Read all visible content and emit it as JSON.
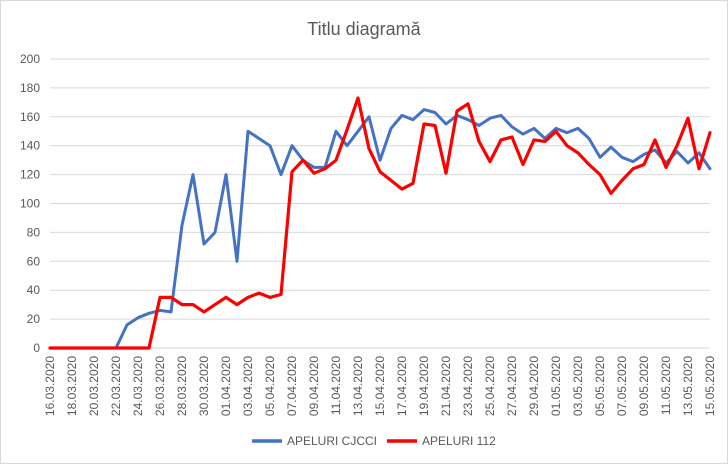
{
  "chart_data": {
    "type": "line",
    "title": "Titlu diagramă",
    "xlabel": "",
    "ylabel": "",
    "ylim": [
      0,
      200
    ],
    "yticks": [
      0,
      20,
      40,
      60,
      80,
      100,
      120,
      140,
      160,
      180,
      200
    ],
    "grid": true,
    "legend_position": "bottom",
    "x": [
      "16.03.2020",
      "17.03.2020",
      "18.03.2020",
      "19.03.2020",
      "20.03.2020",
      "21.03.2020",
      "22.03.2020",
      "23.03.2020",
      "24.03.2020",
      "25.03.2020",
      "26.03.2020",
      "27.03.2020",
      "28.03.2020",
      "29.03.2020",
      "30.03.2020",
      "31.03.2020",
      "01.04.2020",
      "02.04.2020",
      "03.04.2020",
      "04.04.2020",
      "05.04.2020",
      "06.04.2020",
      "07.04.2020",
      "08.04.2020",
      "09.04.2020",
      "10.04.2020",
      "11.04.2020",
      "12.04.2020",
      "13.04.2020",
      "14.04.2020",
      "15.04.2020",
      "16.04.2020",
      "17.04.2020",
      "18.04.2020",
      "19.04.2020",
      "20.04.2020",
      "21.04.2020",
      "22.04.2020",
      "23.04.2020",
      "24.04.2020",
      "25.04.2020",
      "26.04.2020",
      "27.04.2020",
      "28.04.2020",
      "29.04.2020",
      "30.04.2020",
      "01.05.2020",
      "02.05.2020",
      "03.05.2020",
      "04.05.2020",
      "05.05.2020",
      "06.05.2020",
      "07.05.2020",
      "08.05.2020",
      "09.05.2020",
      "10.05.2020",
      "11.05.2020",
      "12.05.2020",
      "13.05.2020",
      "14.05.2020",
      "15.05.2020"
    ],
    "xtick_labels": [
      "16.03.2020",
      "18.03.2020",
      "20.03.2020",
      "22.03.2020",
      "24.03.2020",
      "26.03.2020",
      "28.03.2020",
      "30.03.2020",
      "01.04.2020",
      "03.04.2020",
      "05.04.2020",
      "07.04.2020",
      "09.04.2020",
      "11.04.2020",
      "13.04.2020",
      "15.04.2020",
      "17.04.2020",
      "19.04.2020",
      "21.04.2020",
      "23.04.2020",
      "25.04.2020",
      "27.04.2020",
      "29.04.2020",
      "01.05.2020",
      "03.05.2020",
      "05.05.2020",
      "07.05.2020",
      "09.05.2020",
      "11.05.2020",
      "13.05.2020",
      "15.05.2020"
    ],
    "series": [
      {
        "name": "APELURI CJCCI",
        "color": "#4472c4",
        "values": [
          0,
          0,
          0,
          0,
          0,
          0,
          0,
          16,
          21,
          24,
          26,
          25,
          85,
          120,
          72,
          80,
          120,
          60,
          150,
          145,
          140,
          120,
          140,
          130,
          125,
          125,
          150,
          140,
          150,
          160,
          130,
          152,
          161,
          158,
          165,
          163,
          155,
          161,
          158,
          154,
          159,
          161,
          153,
          148,
          152,
          145,
          152,
          149,
          152,
          145,
          132,
          139,
          132,
          129,
          134,
          137,
          128,
          136,
          128,
          135,
          124
        ]
      },
      {
        "name": "APELURI 112",
        "color": "#ff0000",
        "values": [
          0,
          0,
          0,
          0,
          0,
          0,
          0,
          0,
          0,
          0,
          35,
          35,
          30,
          30,
          25,
          30,
          35,
          30,
          35,
          38,
          35,
          37,
          122,
          130,
          121,
          124,
          130,
          151,
          173,
          138,
          122,
          116,
          110,
          114,
          155,
          154,
          121,
          164,
          169,
          143,
          129,
          144,
          146,
          127,
          144,
          143,
          150,
          140,
          135,
          127,
          120,
          107,
          116,
          124,
          127,
          144,
          125,
          140,
          159,
          124,
          149
        ]
      }
    ]
  }
}
